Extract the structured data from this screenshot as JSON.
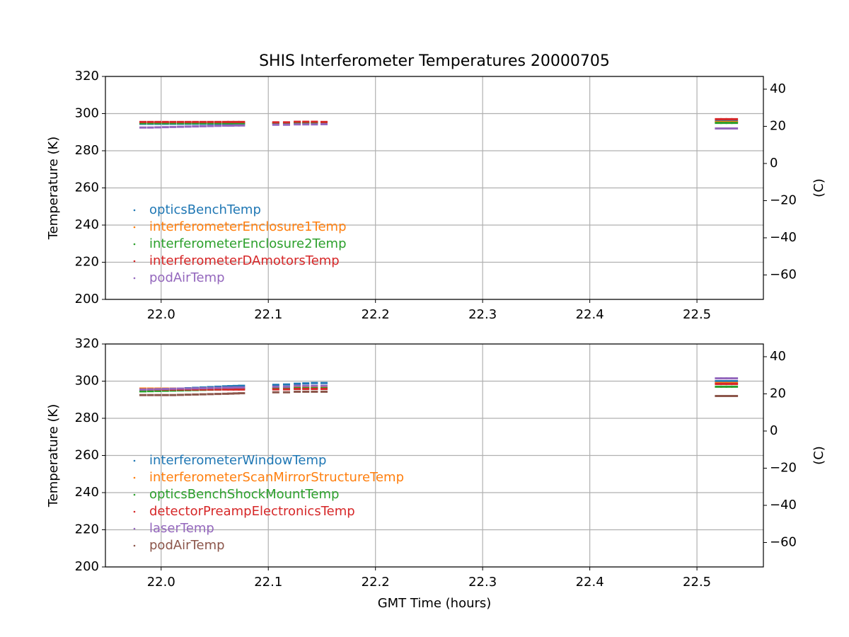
{
  "chart_data": [
    {
      "type": "scatter",
      "title": "SHIS Interferometer Temperatures 20000705",
      "ylabel": "Temperature (K)",
      "y2label": "(C)",
      "x": [
        21.983,
        21.99,
        21.997,
        22.004,
        22.011,
        22.018,
        22.025,
        22.032,
        22.039,
        22.046,
        22.053,
        22.06,
        22.065,
        22.07,
        22.075,
        22.107,
        22.117,
        22.127,
        22.135,
        22.143,
        22.152,
        22.52,
        22.525,
        22.53,
        22.535
      ],
      "xlim": [
        21.948,
        22.562
      ],
      "xticks": [
        {
          "value": 22,
          "label": "22.0"
        },
        22.1,
        22.2,
        22.3,
        22.4,
        22.5
      ],
      "ylim": [
        200,
        320
      ],
      "yticks": [
        200,
        220,
        240,
        260,
        280,
        300,
        320
      ],
      "y2lim": [
        -73.15,
        46.85
      ],
      "y2ticks": [
        {
          "value": -60,
          "label": "−60"
        },
        {
          "value": -40,
          "label": "−40"
        },
        {
          "value": -20,
          "label": "−20"
        },
        0,
        20,
        40
      ],
      "grid": true,
      "legend": "lower left",
      "series": [
        {
          "name": "opticsBenchTemp",
          "color": "#1f77b4",
          "values": [
            294.5,
            294.5,
            294.5,
            294.5,
            294.5,
            294.5,
            294.5,
            294.5,
            294.5,
            294.5,
            294.5,
            294.5,
            294.5,
            294.5,
            294.5,
            294.8,
            294.8,
            295,
            295,
            295,
            295,
            296,
            296,
            296,
            296
          ]
        },
        {
          "name": "interferometerEnclosure1Temp",
          "color": "#ff7f0e",
          "values": [
            295,
            295,
            295,
            295,
            295,
            295,
            295,
            295,
            295,
            295,
            295,
            295,
            295,
            295,
            295,
            295,
            295,
            295.2,
            295.2,
            295.2,
            295,
            295.5,
            295.5,
            295.5,
            295.5
          ]
        },
        {
          "name": "interferometerEnclosure2Temp",
          "color": "#2ca02c",
          "values": [
            294.8,
            294.8,
            294.8,
            294.8,
            294.8,
            294.8,
            294.8,
            294.8,
            294.8,
            294.8,
            294.8,
            294.8,
            294.8,
            294.8,
            294.8,
            294.8,
            294.8,
            295,
            295,
            295,
            294.8,
            295,
            295,
            295,
            295
          ]
        },
        {
          "name": "interferometerDAmotorsTemp",
          "color": "#d62728",
          "values": [
            295.5,
            295.5,
            295.5,
            295.5,
            295.5,
            295.5,
            295.5,
            295.5,
            295.5,
            295.5,
            295.5,
            295.5,
            295.5,
            295.5,
            295.5,
            295.3,
            295.3,
            295.6,
            295.6,
            295.6,
            295.5,
            297,
            297,
            297,
            297
          ]
        },
        {
          "name": "podAirTemp",
          "color": "#9467bd",
          "values": [
            292.5,
            292.5,
            292.6,
            292.7,
            292.8,
            292.9,
            293,
            293.1,
            293.2,
            293.3,
            293.4,
            293.5,
            293.5,
            293.6,
            293.6,
            294,
            294,
            294.2,
            294.2,
            294.2,
            294.3,
            292,
            292,
            292,
            292
          ]
        }
      ]
    },
    {
      "type": "scatter",
      "xlabel": "GMT Time (hours)",
      "ylabel": "Temperature (K)",
      "y2label": "(C)",
      "x": [
        21.983,
        21.99,
        21.997,
        22.004,
        22.011,
        22.018,
        22.025,
        22.032,
        22.039,
        22.046,
        22.053,
        22.06,
        22.065,
        22.07,
        22.075,
        22.107,
        22.117,
        22.127,
        22.135,
        22.143,
        22.152,
        22.52,
        22.525,
        22.53,
        22.535
      ],
      "xlim": [
        21.948,
        22.562
      ],
      "xticks": [
        {
          "value": 22,
          "label": "22.0"
        },
        22.1,
        22.2,
        22.3,
        22.4,
        22.5
      ],
      "ylim": [
        200,
        320
      ],
      "yticks": [
        200,
        220,
        240,
        260,
        280,
        300,
        320
      ],
      "y2lim": [
        -73.15,
        46.85
      ],
      "y2ticks": [
        {
          "value": -60,
          "label": "−60"
        },
        {
          "value": -40,
          "label": "−40"
        },
        {
          "value": -20,
          "label": "−20"
        },
        0,
        20,
        40
      ],
      "grid": true,
      "legend": "lower left",
      "series": [
        {
          "name": "interferometerWindowTemp",
          "color": "#1f77b4",
          "values": [
            295,
            295.2,
            295.4,
            295.6,
            295.8,
            296,
            296.2,
            296.4,
            296.6,
            296.8,
            297,
            297.2,
            297.3,
            297.4,
            297.5,
            298,
            298.2,
            298.6,
            298.8,
            299,
            299,
            300,
            300,
            300,
            300
          ]
        },
        {
          "name": "interferometerScanMirrorStructureTemp",
          "color": "#ff7f0e",
          "values": [
            296,
            296,
            296,
            296,
            296,
            296,
            296,
            296,
            296,
            296,
            296,
            296,
            296,
            296,
            296,
            296.5,
            296.5,
            297,
            297,
            297,
            297,
            299,
            299,
            299,
            299
          ]
        },
        {
          "name": "opticsBenchShockMountTemp",
          "color": "#2ca02c",
          "values": [
            294.5,
            294.6,
            294.7,
            294.8,
            294.9,
            295,
            295.1,
            295.2,
            295.3,
            295.4,
            295.5,
            295.6,
            295.7,
            295.8,
            295.9,
            296,
            296,
            296.2,
            296.2,
            296.2,
            296.2,
            297,
            297,
            297,
            297
          ]
        },
        {
          "name": "detectorPreampElectronicsTemp",
          "color": "#d62728",
          "values": [
            295.5,
            295.5,
            295.5,
            295.5,
            295.5,
            295.5,
            295.5,
            295.5,
            295.5,
            295.5,
            295.5,
            295.5,
            295.5,
            295.5,
            295.5,
            295.6,
            295.6,
            295.8,
            295.8,
            295.8,
            295.8,
            298.5,
            298.5,
            298.5,
            298.5
          ]
        },
        {
          "name": "laserTemp",
          "color": "#9467bd",
          "values": [
            295.5,
            295.6,
            295.7,
            295.8,
            295.9,
            296,
            296,
            296.1,
            296.2,
            296.3,
            296.4,
            296.5,
            296.5,
            296.6,
            296.6,
            297,
            297,
            297.5,
            297.5,
            297.5,
            297.5,
            301.5,
            301.5,
            301.5,
            301.5
          ]
        },
        {
          "name": "podAirTemp",
          "color": "#8c564b",
          "values": [
            292.5,
            292.5,
            292.5,
            292.5,
            292.5,
            292.6,
            292.7,
            292.8,
            292.9,
            293,
            293.1,
            293.2,
            293.3,
            293.4,
            293.5,
            294,
            294,
            294.3,
            294.3,
            294.3,
            294.3,
            292,
            292,
            292,
            292
          ]
        }
      ]
    }
  ]
}
